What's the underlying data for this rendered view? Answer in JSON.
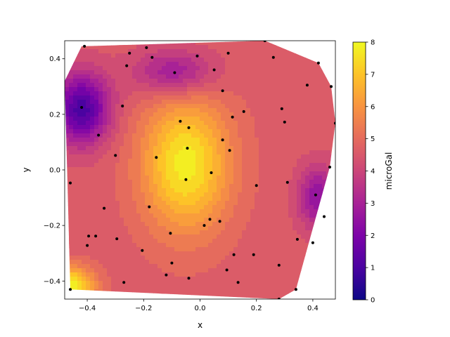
{
  "chart_data": {
    "type": "heatmap",
    "subtype": "tricontourf",
    "title": "",
    "xlabel": "x",
    "ylabel": "y",
    "colorbar_label": "microGal",
    "colormap": "plasma",
    "xlim": [
      -0.48,
      0.48
    ],
    "ylim": [
      -0.465,
      0.465
    ],
    "clim": [
      0,
      8
    ],
    "xticks": [
      -0.4,
      -0.2,
      0.0,
      0.2,
      0.4
    ],
    "xtick_labels": [
      "−0.4",
      "−0.2",
      "0.0",
      "0.2",
      "0.4"
    ],
    "yticks": [
      -0.4,
      -0.2,
      0.0,
      0.2,
      0.4
    ],
    "ytick_labels": [
      "−0.4",
      "−0.2",
      "0.0",
      "0.2",
      "0.4"
    ],
    "cbar_ticks": [
      0,
      1,
      2,
      3,
      4,
      5,
      6,
      7,
      8
    ],
    "cbar_tick_labels": [
      "0",
      "1",
      "2",
      "3",
      "4",
      "5",
      "6",
      "7",
      "8"
    ],
    "grid": false,
    "hull": [
      [
        -0.42,
        0.445
      ],
      [
        0.23,
        0.465
      ],
      [
        0.42,
        0.385
      ],
      [
        0.465,
        0.3
      ],
      [
        0.48,
        0.17
      ],
      [
        0.46,
        0.01
      ],
      [
        0.34,
        -0.43
      ],
      [
        0.28,
        -0.465
      ],
      [
        -0.46,
        -0.43
      ],
      [
        -0.47,
        -0.05
      ],
      [
        -0.48,
        0.32
      ]
    ],
    "field_peaks": [
      {
        "x": -0.05,
        "y": 0.02,
        "value": 7.8,
        "sx": 0.11,
        "sy": 0.17
      },
      {
        "x": -0.46,
        "y": -0.42,
        "value": 8.0,
        "sx": 0.06,
        "sy": 0.05
      },
      {
        "x": -0.42,
        "y": 0.22,
        "value": 1.0,
        "sx": 0.07,
        "sy": 0.09
      },
      {
        "x": -0.09,
        "y": 0.35,
        "value": 2.6,
        "sx": 0.1,
        "sy": 0.06
      },
      {
        "x": 0.42,
        "y": -0.1,
        "value": 2.4,
        "sx": 0.05,
        "sy": 0.08
      }
    ],
    "points": [
      [
        -0.41,
        0.445
      ],
      [
        -0.25,
        0.42
      ],
      [
        -0.19,
        0.44
      ],
      [
        -0.26,
        0.375
      ],
      [
        -0.17,
        0.405
      ],
      [
        -0.09,
        0.35
      ],
      [
        -0.01,
        0.41
      ],
      [
        0.1,
        0.42
      ],
      [
        0.23,
        0.465
      ],
      [
        0.26,
        0.405
      ],
      [
        0.42,
        0.385
      ],
      [
        0.05,
        0.36
      ],
      [
        0.08,
        0.285
      ],
      [
        0.38,
        0.305
      ],
      [
        0.465,
        0.3
      ],
      [
        -0.42,
        0.225
      ],
      [
        -0.275,
        0.23
      ],
      [
        0.29,
        0.22
      ],
      [
        0.155,
        0.21
      ],
      [
        0.115,
        0.19
      ],
      [
        0.3,
        0.172
      ],
      [
        0.48,
        0.168
      ],
      [
        -0.07,
        0.175
      ],
      [
        -0.04,
        0.152
      ],
      [
        -0.36,
        0.125
      ],
      [
        0.08,
        0.108
      ],
      [
        -0.045,
        0.078
      ],
      [
        0.105,
        0.07
      ],
      [
        -0.3,
        0.052
      ],
      [
        -0.155,
        0.045
      ],
      [
        0.46,
        0.01
      ],
      [
        0.04,
        -0.01
      ],
      [
        -0.05,
        -0.035
      ],
      [
        0.31,
        -0.045
      ],
      [
        0.2,
        -0.056
      ],
      [
        -0.46,
        -0.047
      ],
      [
        0.41,
        -0.09
      ],
      [
        -0.18,
        -0.133
      ],
      [
        -0.34,
        -0.138
      ],
      [
        0.44,
        -0.168
      ],
      [
        0.035,
        -0.178
      ],
      [
        0.07,
        -0.185
      ],
      [
        0.015,
        -0.2
      ],
      [
        -0.105,
        -0.228
      ],
      [
        -0.395,
        -0.238
      ],
      [
        -0.37,
        -0.238
      ],
      [
        -0.295,
        -0.248
      ],
      [
        0.345,
        -0.25
      ],
      [
        0.4,
        -0.262
      ],
      [
        -0.4,
        -0.272
      ],
      [
        -0.205,
        -0.29
      ],
      [
        0.12,
        -0.305
      ],
      [
        0.19,
        -0.305
      ],
      [
        -0.1,
        -0.335
      ],
      [
        0.28,
        -0.343
      ],
      [
        0.095,
        -0.36
      ],
      [
        -0.12,
        -0.378
      ],
      [
        -0.04,
        -0.39
      ],
      [
        -0.27,
        -0.405
      ],
      [
        0.135,
        -0.405
      ],
      [
        -0.46,
        -0.43
      ],
      [
        0.34,
        -0.43
      ],
      [
        0.28,
        -0.465
      ]
    ]
  }
}
